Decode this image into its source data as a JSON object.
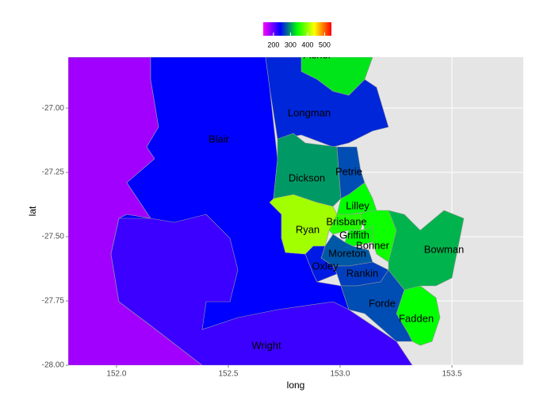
{
  "chart_data": {
    "type": "choropleth",
    "x_label": "long",
    "y_label": "lat",
    "xlim": [
      151.784,
      153.819
    ],
    "ylim": [
      -28.0,
      -26.802
    ],
    "xticks": [
      {
        "value": 152.0,
        "label": "152.0"
      },
      {
        "value": 152.5,
        "label": "152.5"
      },
      {
        "value": 153.0,
        "label": "153.0"
      },
      {
        "value": 153.5,
        "label": "153.5"
      }
    ],
    "yticks": [
      {
        "value": -28.0,
        "label": "-28.00"
      },
      {
        "value": -27.75,
        "label": "-27.75"
      },
      {
        "value": -27.5,
        "label": "-27.50"
      },
      {
        "value": -27.25,
        "label": "-27.25"
      },
      {
        "value": -27.0,
        "label": "-27.00"
      }
    ],
    "grid": true,
    "colorbar": {
      "lim": [
        140,
        540
      ],
      "ticks": [
        200,
        300,
        400,
        500
      ],
      "colors": [
        "#ff00ff",
        "#0000ff",
        "#00ff00",
        "#ffff00",
        "#ff0000"
      ]
    },
    "regions": [
      {
        "name": null,
        "value": 177
      },
      {
        "name": "Blair",
        "value": 240
      },
      {
        "name": "Wright",
        "value": 217
      },
      {
        "name": "Fisher",
        "value": 330
      },
      {
        "name": "Longman",
        "value": 255
      },
      {
        "name": "Dickson",
        "value": 300
      },
      {
        "name": "Petrie",
        "value": 270
      },
      {
        "name": "Ryan",
        "value": 403
      },
      {
        "name": "Lilley",
        "value": 340
      },
      {
        "name": "Brisbane",
        "value": 355
      },
      {
        "name": "Griffith",
        "value": 340
      },
      {
        "name": "Bonner",
        "value": 345
      },
      {
        "name": "Moreton",
        "value": 275
      },
      {
        "name": "Oxley",
        "value": 250
      },
      {
        "name": "Rankin",
        "value": 265
      },
      {
        "name": "Forde",
        "value": 270
      },
      {
        "name": "Fadden",
        "value": 340
      },
      {
        "name": "Bowman",
        "value": 310
      }
    ]
  }
}
